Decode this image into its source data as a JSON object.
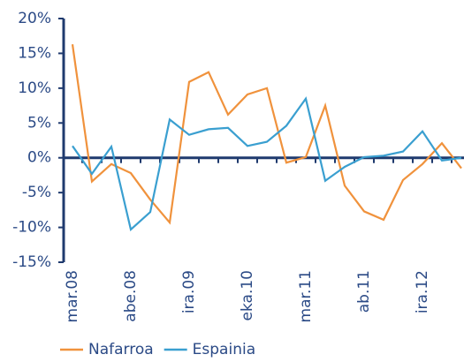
{
  "chart_data": {
    "type": "line",
    "categories": [
      "mar.08",
      null,
      null,
      "abe.08",
      null,
      null,
      "ira.09",
      null,
      null,
      "eka.10",
      null,
      null,
      "mar.11",
      null,
      null,
      "ab.11",
      null,
      null,
      "ira.12",
      null,
      null
    ],
    "series": [
      {
        "name": "Nafarroa",
        "color": "#f0923c",
        "values": [
          16.3,
          -3.4,
          -0.9,
          -2.2,
          -6.0,
          -9.3,
          10.9,
          12.3,
          6.2,
          9.1,
          10.0,
          -0.7,
          0.1,
          7.5,
          -4.0,
          -7.7,
          -8.9,
          -3.2,
          -0.9,
          2.1,
          -1.5
        ]
      },
      {
        "name": "Espainia",
        "color": "#3a9fd0",
        "values": [
          1.7,
          -2.3,
          1.6,
          -10.3,
          -7.8,
          5.5,
          3.3,
          4.1,
          4.3,
          1.7,
          2.3,
          4.6,
          8.5,
          -3.3,
          -1.3,
          0.1,
          0.3,
          0.9,
          3.8,
          -0.4,
          0.0
        ]
      }
    ],
    "ylim": [
      -15,
      20
    ],
    "yticks": [
      {
        "value": -15,
        "label": "-15%"
      },
      {
        "value": -10,
        "label": "-10%"
      },
      {
        "value": -5,
        "label": "-5%"
      },
      {
        "value": 0,
        "label": "0%"
      },
      {
        "value": 5,
        "label": "5%"
      },
      {
        "value": 10,
        "label": "10%"
      },
      {
        "value": 15,
        "label": "15%"
      },
      {
        "value": 20,
        "label": "20%"
      }
    ],
    "legend": "bottom"
  }
}
